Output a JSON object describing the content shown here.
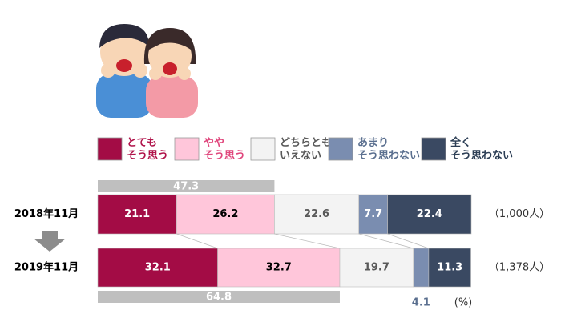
{
  "chart_data": {
    "type": "stacked-bar-h",
    "categories": [
      "2018年11月",
      "2019年11月"
    ],
    "series": [
      {
        "name": "とても\nそう思う",
        "color": "#a30c45",
        "label_color": "#ffffff",
        "legend_color": "#b0134a",
        "values": [
          21.1,
          32.1
        ]
      },
      {
        "name": "やや\nそう思う",
        "color": "#ffc6da",
        "label_color": "#000000",
        "legend_color": "#e0467c",
        "values": [
          26.2,
          32.7
        ]
      },
      {
        "name": "どちらとも\nいえない",
        "color": "#f3f3f3",
        "label_color": "#595959",
        "legend_color": "#595959",
        "values": [
          22.6,
          19.7
        ]
      },
      {
        "name": "あまり\nそう思わない",
        "color": "#7a8db0",
        "label_color": "#ffffff",
        "legend_color": "#5a6f8f",
        "values": [
          7.7,
          4.1
        ]
      },
      {
        "name": "全く\nそう思わない",
        "color": "#3a4962",
        "label_color": "#ffffff",
        "legend_color": "#2c3e55",
        "values": [
          22.4,
          11.3
        ]
      }
    ],
    "xlim": [
      0,
      100
    ],
    "top2_totals": [
      47.3,
      64.8
    ],
    "sample_sizes": [
      "（1,000人）",
      "（1,378人）"
    ],
    "unit_label": "(%)"
  }
}
